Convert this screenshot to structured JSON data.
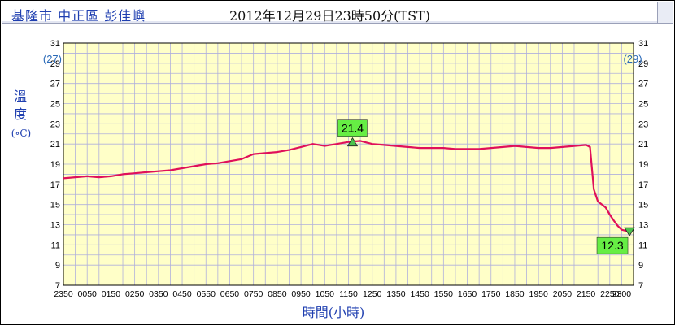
{
  "header": {
    "station": "基隆市 中正區 彭佳嶼",
    "timestamp": "2012年12月29日23時50分(TST)"
  },
  "chart_data": {
    "type": "line",
    "ylabel": "溫度",
    "yunit": "(∘C)",
    "xlabel": "時間(小時)",
    "ylim": [
      7,
      31
    ],
    "yticks": [
      7,
      9,
      11,
      13,
      15,
      17,
      19,
      21,
      23,
      25,
      27,
      29,
      31
    ],
    "left_marker_value": "(27)",
    "right_marker_value": "(29)",
    "xticks": [
      "2350",
      "0050",
      "0150",
      "0250",
      "0350",
      "0450",
      "0550",
      "0650",
      "0750",
      "0850",
      "0950",
      "1050",
      "1150",
      "1250",
      "1350",
      "1450",
      "1550",
      "1650",
      "1750",
      "1850",
      "1950",
      "2050",
      "2150",
      "2250",
      "2300"
    ],
    "colors": {
      "plot_bg": "#ffffc8",
      "line": "#e0105a",
      "grid": "#b0b0dc",
      "label_box": "#66ee44",
      "marker": "#4cc24c"
    },
    "max_label": "21.4",
    "min_label": "12.3",
    "series": [
      {
        "x": [
          0,
          0.5,
          1,
          1.5,
          2,
          2.5,
          3,
          3.5,
          4,
          4.5,
          5,
          5.5,
          6,
          6.5,
          7,
          7.5,
          8,
          8.5,
          9,
          9.5,
          10,
          10.5,
          11,
          11.5,
          12,
          12.5,
          13,
          13.5,
          14,
          14.5,
          15,
          15.5,
          16,
          16.5,
          17,
          17.5,
          18,
          18.5,
          19,
          19.5,
          20,
          20.5,
          21,
          21.5,
          22,
          22.17,
          22.33,
          22.5,
          22.67,
          22.83,
          23,
          23.17,
          23.33,
          23.5,
          23.67,
          23.83
        ],
        "y": [
          17.6,
          17.7,
          17.8,
          17.7,
          17.8,
          18.0,
          18.1,
          18.2,
          18.3,
          18.4,
          18.6,
          18.8,
          19.0,
          19.1,
          19.3,
          19.5,
          20.0,
          20.1,
          20.2,
          20.4,
          20.7,
          21.0,
          20.8,
          21.0,
          21.2,
          21.3,
          21.0,
          20.9,
          20.8,
          20.7,
          20.6,
          20.6,
          20.6,
          20.5,
          20.5,
          20.5,
          20.6,
          20.7,
          20.8,
          20.7,
          20.6,
          20.6,
          20.7,
          20.8,
          20.9,
          20.7,
          16.5,
          15.3,
          15.0,
          14.7,
          14.0,
          13.4,
          12.9,
          12.5,
          12.4,
          12.3
        ]
      }
    ],
    "max_point": {
      "x": 12.17,
      "y": 21.2
    },
    "min_point": {
      "x": 23.83,
      "y": 12.3
    }
  }
}
